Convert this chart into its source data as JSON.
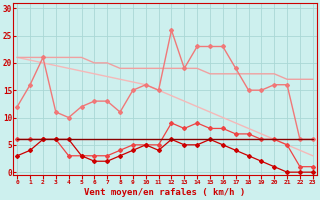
{
  "x": [
    0,
    1,
    2,
    3,
    4,
    5,
    6,
    7,
    8,
    9,
    10,
    11,
    12,
    13,
    14,
    15,
    16,
    17,
    18,
    19,
    20,
    21,
    22,
    23
  ],
  "line_diag": [
    21,
    20.5,
    20,
    19.5,
    19,
    18.5,
    18,
    17.5,
    17,
    16.5,
    16,
    15,
    14,
    13,
    12,
    11,
    10,
    9,
    8,
    7,
    6,
    5,
    4,
    3
  ],
  "line_rafales_upper": [
    21,
    21,
    21,
    21,
    21,
    21,
    20,
    20,
    19,
    19,
    19,
    19,
    19,
    19,
    19,
    18,
    18,
    18,
    18,
    18,
    18,
    17,
    17,
    17
  ],
  "line_rafales_jagged": [
    12,
    16,
    21,
    11,
    10,
    12,
    13,
    13,
    11,
    15,
    16,
    15,
    26,
    19,
    23,
    23,
    23,
    19,
    15,
    15,
    16,
    16,
    6,
    6
  ],
  "line_med_red": [
    6,
    6,
    6,
    6,
    3,
    3,
    3,
    3,
    4,
    5,
    5,
    5,
    9,
    8,
    9,
    8,
    8,
    7,
    7,
    6,
    6,
    5,
    1,
    1
  ],
  "line_dark_red": [
    3,
    4,
    6,
    6,
    6,
    3,
    2,
    2,
    3,
    4,
    5,
    4,
    6,
    5,
    5,
    6,
    5,
    4,
    3,
    2,
    1,
    0,
    0,
    0
  ],
  "line_flat": [
    6,
    6,
    6,
    6,
    6,
    6,
    6,
    6,
    6,
    6,
    6,
    6,
    6,
    6,
    6,
    6,
    6,
    6,
    6,
    6,
    6,
    6,
    6,
    6
  ],
  "background_color": "#cdf0ee",
  "grid_color": "#aad8d5",
  "col_diag": "#f5b8b8",
  "col_rafales_upper": "#f0a0a0",
  "col_rafales_jagged": "#f07878",
  "col_med_red": "#ee4444",
  "col_dark_red": "#cc0000",
  "col_flat": "#880000",
  "xlabel": "Vent moyen/en rafales ( km/h )",
  "xlabel_color": "#cc0000",
  "tick_color": "#cc0000",
  "ylabel_values": [
    0,
    5,
    10,
    15,
    20,
    25,
    30
  ],
  "ylim": [
    -0.5,
    31
  ],
  "xlim": [
    -0.3,
    23.3
  ]
}
